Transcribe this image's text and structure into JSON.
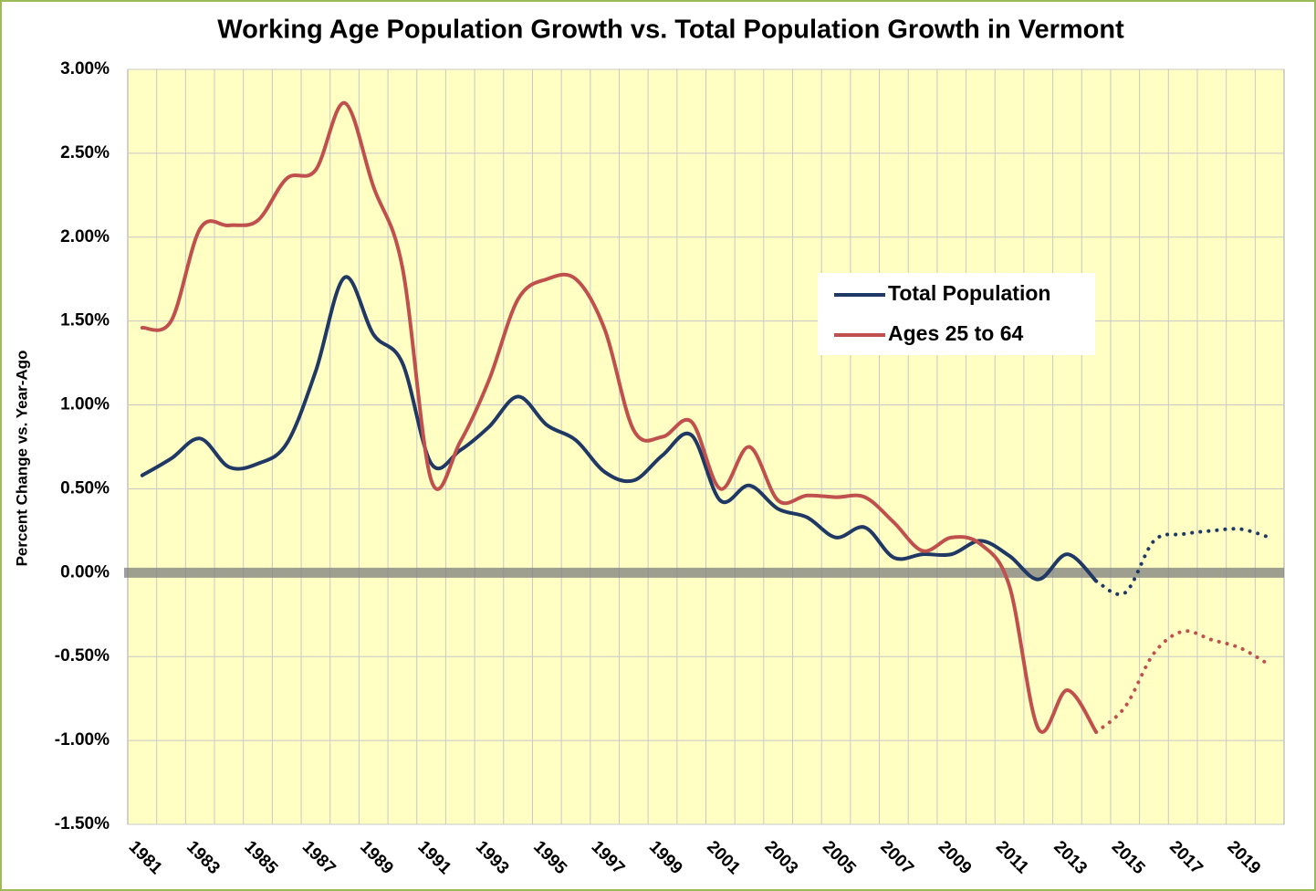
{
  "chart_data": {
    "type": "line",
    "title": "Working Age Population Growth vs. Total Population Growth in Vermont",
    "y_label": "Percent Change vs. Year-Ago",
    "categories": [
      "1981",
      null,
      "1983",
      null,
      "1985",
      null,
      "1987",
      null,
      "1989",
      null,
      "1991",
      null,
      "1993",
      null,
      "1995",
      null,
      "1997",
      null,
      "1999",
      null,
      "2001",
      null,
      "2003",
      null,
      "2005",
      null,
      "2007",
      null,
      "2009",
      null,
      "2011",
      null,
      "2013",
      null,
      "2015",
      null,
      "2017",
      null,
      "2019",
      null
    ],
    "series": [
      {
        "name": "Total Population",
        "color": "#1f3864",
        "dotted_from": 33,
        "values": [
          0.58,
          0.68,
          0.8,
          0.63,
          0.65,
          0.77,
          1.2,
          1.76,
          1.42,
          1.25,
          0.65,
          0.73,
          0.87,
          1.05,
          0.88,
          0.79,
          0.6,
          0.55,
          0.7,
          0.82,
          0.43,
          0.52,
          0.38,
          0.33,
          0.21,
          0.27,
          0.09,
          0.11,
          0.11,
          0.19,
          0.1,
          -0.04,
          0.11,
          -0.05,
          -0.12,
          0.19,
          0.23,
          0.25,
          0.26,
          0.21
        ]
      },
      {
        "name": "Ages 25 to 64",
        "color": "#c0504d",
        "dotted_from": 33,
        "values": [
          1.46,
          1.5,
          2.05,
          2.07,
          2.1,
          2.35,
          2.4,
          2.8,
          2.3,
          1.82,
          0.55,
          0.78,
          1.15,
          1.63,
          1.75,
          1.75,
          1.45,
          0.85,
          0.81,
          0.9,
          0.5,
          0.75,
          0.43,
          0.46,
          0.45,
          0.45,
          0.3,
          0.13,
          0.21,
          0.17,
          -0.08,
          -0.93,
          -0.7,
          -0.95,
          -0.8,
          -0.48,
          -0.35,
          -0.4,
          -0.45,
          -0.55
        ]
      }
    ],
    "ylim": [
      -1.5,
      3
    ],
    "yticks": [
      {
        "value": -1.5,
        "label": "-1.50%"
      },
      {
        "value": -1,
        "label": "-1.00%"
      },
      {
        "value": -0.5,
        "label": "-0.50%"
      },
      {
        "value": 0,
        "label": "0.00%"
      },
      {
        "value": 0.5,
        "label": "0.50%"
      },
      {
        "value": 1,
        "label": "1.00%"
      },
      {
        "value": 1.5,
        "label": "1.50%"
      },
      {
        "value": 2,
        "label": "2.00%"
      },
      {
        "value": 2.5,
        "label": "2.50%"
      },
      {
        "value": 3,
        "label": "3.00%"
      }
    ],
    "grid": true,
    "legend": "upper right",
    "plot_background": "#ffffc4"
  }
}
